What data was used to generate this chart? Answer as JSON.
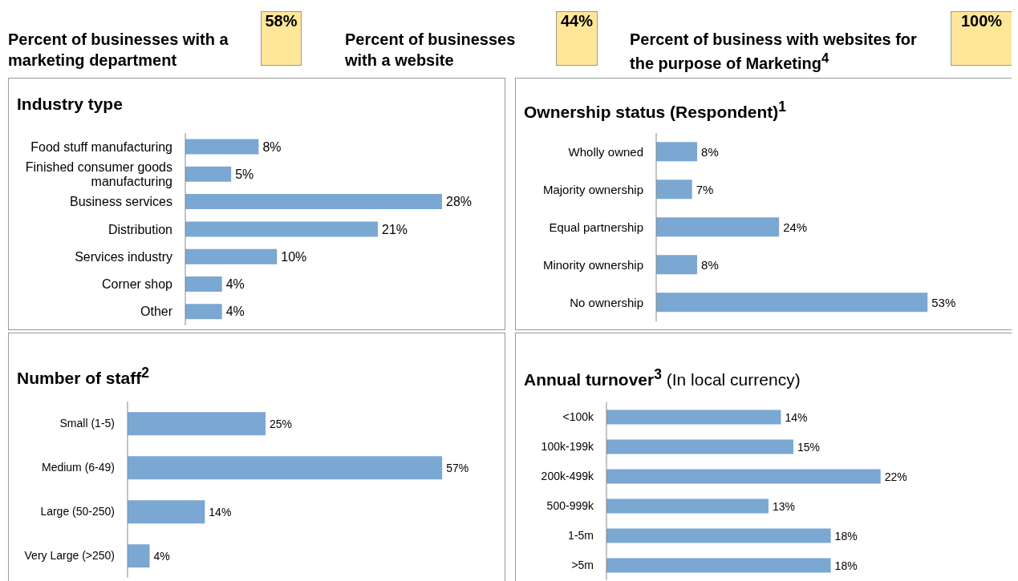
{
  "chart_data": [
    {
      "type": "other",
      "title": "Percent of businesses with a marketing department",
      "annotations": [
        "58%"
      ]
    },
    {
      "type": "other",
      "title": "Percent of businesses with a website",
      "annotations": [
        "44%"
      ]
    },
    {
      "type": "other",
      "title": "Percent of business with websites for the purpose of Marketing$^{4}$",
      "annotations": [
        "100%"
      ]
    },
    {
      "type": "bar",
      "orientation": "horizontal",
      "title": "Industry type",
      "categories": [
        "Food stuff manufacturing",
        "Finished consumer goods manufacturing",
        "Business services",
        "Distribution",
        "Services industry",
        "Corner shop",
        "Other"
      ],
      "values": [
        8,
        5,
        28,
        21,
        10,
        4,
        4
      ],
      "value_labels": [
        "8%",
        "5%",
        "28%",
        "21%",
        "10%",
        "4%",
        "4%"
      ],
      "color": "#7ba7d3",
      "tick_labels": "y"
    },
    {
      "type": "bar",
      "orientation": "horizontal",
      "title": "Ownership status (Respondent)$^{1}$",
      "categories": [
        "Wholly owned",
        "Majority ownership",
        "Equal partnership",
        "Minority ownership",
        "No ownership"
      ],
      "values": [
        8,
        7,
        24,
        8,
        53
      ],
      "value_labels": [
        "8%",
        "7%",
        "24%",
        "8%",
        "53%"
      ],
      "color": "#7ba7d3",
      "tick_labels": "y"
    },
    {
      "type": "bar",
      "orientation": "horizontal",
      "title": "Number of staff$^{2}$",
      "categories": [
        "Small (1-5)",
        "Medium (6-49)",
        "Large (50-250)",
        "Very Large (>250)"
      ],
      "values": [
        25,
        57,
        14,
        4
      ],
      "value_labels": [
        "25%",
        "57%",
        "14%",
        "4%"
      ],
      "color": "#7ba7d3",
      "tick_labels": "y"
    },
    {
      "type": "bar",
      "orientation": "horizontal",
      "title": "Annual turnover$^{3}$",
      "subtitle": "(In local currency)",
      "categories": [
        "<100k",
        "100k-199k",
        "200k-499k",
        "500-999k",
        "1-5m",
        ">5m"
      ],
      "values": [
        14,
        15,
        22,
        13,
        18,
        18
      ],
      "value_labels": [
        "14%",
        "15%",
        "22%",
        "13%",
        "18%",
        "18%"
      ],
      "color": "#7ba7d3",
      "tick_labels": "y"
    }
  ]
}
